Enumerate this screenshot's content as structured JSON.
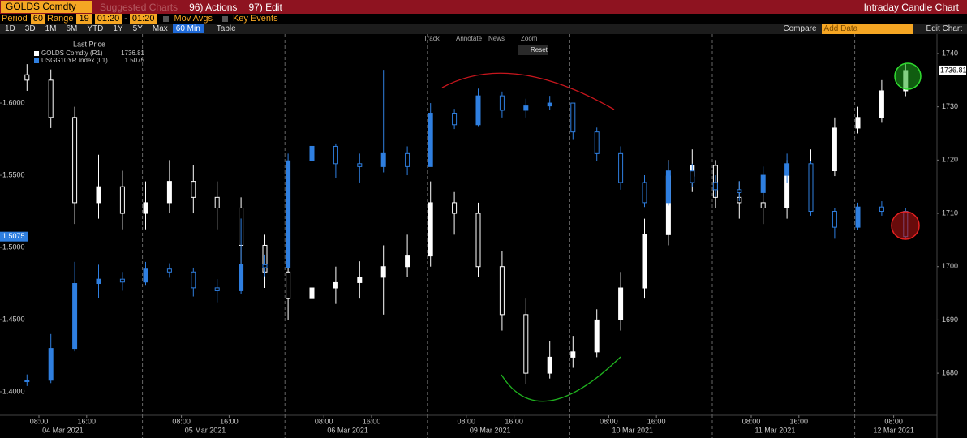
{
  "header": {
    "security": "GOLDS Comdty",
    "suggested": "Suggested Charts",
    "actions": "96) Actions",
    "edit": "97) Edit",
    "title": "Intraday Candle Chart"
  },
  "controls": {
    "period_label": "Period",
    "period": 60,
    "range_label": "Range",
    "range": 19,
    "start": "01:20",
    "end": "01:20",
    "mov_avgs": "Mov Avgs",
    "key_events": "Key Events",
    "ranges": [
      "1D",
      "3D",
      "1M",
      "6M",
      "YTD",
      "1Y",
      "5Y",
      "Max"
    ],
    "interval": "60 Min",
    "table": "Table",
    "compare": "Compare",
    "add_data": "Add Data",
    "edit_chart": "Edit Chart"
  },
  "tools": [
    "Track",
    "Annotate",
    "News",
    "Zoom"
  ],
  "reset": "Reset",
  "chart_data": {
    "type": "candlestick",
    "legend_title": "Last Price",
    "days": [
      "04 Mar 2021",
      "05 Mar 2021",
      "06 Mar 2021",
      "09 Mar 2021",
      "10 Mar 2021",
      "11 Mar 2021",
      "12 Mar 2021"
    ],
    "x": [
      "04 Mar 2021 06:00",
      "04 Mar 2021 10:00",
      "04 Mar 2021 14:00",
      "04 Mar 2021 18:00",
      "04 Mar 2021 22:00",
      "05 Mar 2021 02:00",
      "05 Mar 2021 06:00",
      "05 Mar 2021 10:00",
      "05 Mar 2021 14:00",
      "05 Mar 2021 18:00",
      "05 Mar 2021 22:00",
      "06 Mar 2021 02:00",
      "06 Mar 2021 06:00",
      "06 Mar 2021 10:00",
      "06 Mar 2021 14:00",
      "06 Mar 2021 18:00",
      "06 Mar 2021 22:00",
      "09 Mar 2021 02:00",
      "09 Mar 2021 06:00",
      "09 Mar 2021 10:00",
      "09 Mar 2021 14:00",
      "09 Mar 2021 18:00",
      "09 Mar 2021 22:00",
      "10 Mar 2021 02:00",
      "10 Mar 2021 06:00",
      "10 Mar 2021 10:00",
      "10 Mar 2021 14:00",
      "10 Mar 2021 18:00",
      "10 Mar 2021 22:00",
      "11 Mar 2021 02:00",
      "11 Mar 2021 06:00",
      "11 Mar 2021 10:00",
      "11 Mar 2021 14:00",
      "11 Mar 2021 18:00",
      "11 Mar 2021 22:00",
      "12 Mar 2021 02:00",
      "12 Mar 2021 06:00",
      "12 Mar 2021 10:00"
    ],
    "xticks": [
      {
        "value": "04 Mar 2021 08:00",
        "label": "08:00"
      },
      {
        "value": "04 Mar 2021 16:00",
        "label": "16:00"
      },
      {
        "value": "05 Mar 2021 08:00",
        "label": "08:00"
      },
      {
        "value": "05 Mar 2021 16:00",
        "label": "16:00"
      },
      {
        "value": "06 Mar 2021 08:00",
        "label": "08:00"
      },
      {
        "value": "06 Mar 2021 16:00",
        "label": "16:00"
      },
      {
        "value": "09 Mar 2021 08:00",
        "label": "08:00"
      },
      {
        "value": "09 Mar 2021 16:00",
        "label": "16:00"
      },
      {
        "value": "10 Mar 2021 08:00",
        "label": "08:00"
      },
      {
        "value": "10 Mar 2021 16:00",
        "label": "16:00"
      },
      {
        "value": "11 Mar 2021 08:00",
        "label": "08:00"
      },
      {
        "value": "11 Mar 2021 16:00",
        "label": "16:00"
      },
      {
        "value": "12 Mar 2021 08:00",
        "label": "08:00"
      }
    ],
    "ylim": [
      1.3837,
      1.6478
    ],
    "yticks": [
      {
        "value": 1.4,
        "label": "1.4000"
      },
      {
        "value": 1.45,
        "label": "1.4500"
      },
      {
        "value": 1.5,
        "label": "1.5000"
      },
      {
        "value": 1.55,
        "label": "1.5500"
      },
      {
        "value": 1.6,
        "label": "1.6000"
      }
    ],
    "y2lim": [
      1672.1,
      1743.65
    ],
    "y2ticks": [
      1680,
      1690,
      1700,
      1710,
      1720,
      1730,
      1740
    ],
    "series": [
      {
        "name": "GOLDS Comdty (R1)",
        "color": "#ffffff",
        "axis": "y2",
        "open": [
          1736,
          1735,
          1728,
          1712,
          1715,
          1710,
          1712,
          1716,
          1713,
          1711,
          1704,
          1699,
          1694,
          1696,
          1697,
          1698,
          1700,
          1702,
          1712,
          1710,
          1700,
          1691,
          1680,
          1683,
          1684,
          1690,
          1696,
          1706,
          1717,
          1719,
          1713,
          1712,
          1711,
          1717,
          1718,
          1726,
          1728,
          1733
        ],
        "high": [
          1738,
          1737,
          1730,
          1721,
          1718,
          1716,
          1720,
          1719,
          1716,
          1713,
          1706,
          1701,
          1699,
          1700,
          1701,
          1704,
          1706,
          1716,
          1714,
          1712,
          1703,
          1694,
          1686,
          1687,
          1692,
          1699,
          1709,
          1720,
          1722,
          1720,
          1716,
          1715,
          1720,
          1722,
          1728,
          1730,
          1735,
          1738
        ],
        "low": [
          1733,
          1726,
          1708,
          1709,
          1707,
          1707,
          1710,
          1710,
          1707,
          1700,
          1696,
          1690,
          1691,
          1693,
          1694,
          1691,
          1698,
          1700,
          1706,
          1698,
          1688,
          1678,
          1679,
          1681,
          1683,
          1688,
          1694,
          1704,
          1714,
          1711,
          1709,
          1708,
          1709,
          1714,
          1717,
          1725,
          1727,
          1732
        ],
        "close": [
          1735,
          1728,
          1712,
          1715,
          1710,
          1712,
          1716,
          1713,
          1711,
          1704,
          1699,
          1694,
          1696,
          1697,
          1698,
          1700,
          1702,
          1712,
          1710,
          1700,
          1691,
          1680,
          1683,
          1684,
          1690,
          1696,
          1706,
          1717,
          1719,
          1713,
          1712,
          1711,
          1717,
          1718,
          1726,
          1728,
          1733,
          1736.81
        ]
      },
      {
        "name": "USGG10YR Index (L1)",
        "color": "#2f7fe0",
        "axis": "y",
        "open": [
          1.407,
          1.408,
          1.43,
          1.475,
          1.478,
          1.476,
          1.485,
          1.483,
          1.472,
          1.47,
          1.488,
          1.486,
          1.56,
          1.57,
          1.558,
          1.556,
          1.565,
          1.556,
          1.593,
          1.585,
          1.605,
          1.595,
          1.598,
          1.6,
          1.58,
          1.565,
          1.545,
          1.531,
          1.553,
          1.545,
          1.54,
          1.538,
          1.55,
          1.558,
          1.525,
          1.514,
          1.528,
          1.525
        ],
        "high": [
          1.412,
          1.44,
          1.49,
          1.488,
          1.483,
          1.49,
          1.489,
          1.486,
          1.478,
          1.52,
          1.495,
          1.565,
          1.578,
          1.572,
          1.565,
          1.623,
          1.57,
          1.6,
          1.596,
          1.61,
          1.608,
          1.603,
          1.605,
          1.6,
          1.583,
          1.57,
          1.55,
          1.56,
          1.558,
          1.55,
          1.546,
          1.556,
          1.565,
          1.56,
          1.527,
          1.531,
          1.532,
          1.527
        ],
        "low": [
          1.404,
          1.406,
          1.428,
          1.465,
          1.47,
          1.474,
          1.479,
          1.466,
          1.462,
          1.468,
          1.48,
          1.486,
          1.555,
          1.548,
          1.545,
          1.552,
          1.55,
          1.556,
          1.582,
          1.584,
          1.59,
          1.59,
          1.595,
          1.575,
          1.56,
          1.54,
          1.528,
          1.529,
          1.542,
          1.535,
          1.532,
          1.535,
          1.545,
          1.522,
          1.506,
          1.512,
          1.522,
          1.506
        ],
        "close": [
          1.408,
          1.43,
          1.475,
          1.478,
          1.476,
          1.485,
          1.483,
          1.472,
          1.47,
          1.488,
          1.486,
          1.56,
          1.57,
          1.558,
          1.556,
          1.565,
          1.556,
          1.593,
          1.585,
          1.605,
          1.595,
          1.598,
          1.6,
          1.58,
          1.565,
          1.545,
          1.531,
          1.553,
          1.545,
          1.54,
          1.538,
          1.55,
          1.558,
          1.525,
          1.514,
          1.528,
          1.525,
          1.5075
        ]
      }
    ]
  }
}
